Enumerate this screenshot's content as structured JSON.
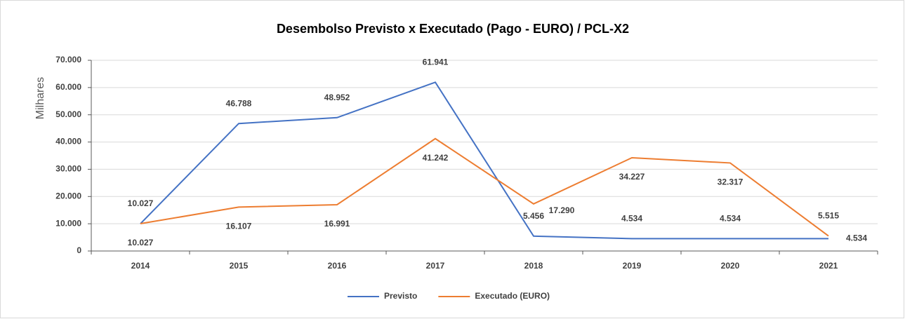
{
  "chart_data": {
    "type": "line",
    "title": "Desembolso Previsto x Executado (Pago - EURO) / PCL-X2",
    "y_axis_label": "Milhares",
    "categories": [
      "2014",
      "2015",
      "2016",
      "2017",
      "2018",
      "2019",
      "2020",
      "2021"
    ],
    "series": [
      {
        "name": "Previsto",
        "color": "#4472c4",
        "values": [
          10027,
          46788,
          48952,
          61941,
          5456,
          4534,
          4534,
          4534
        ],
        "value_labels": [
          "10.027",
          "46.788",
          "48.952",
          "61.941",
          "5.456",
          "4.534",
          "4.534",
          "4.534"
        ]
      },
      {
        "name": "Executado (EURO)",
        "color": "#ed7d31",
        "values": [
          10027,
          16107,
          16991,
          41242,
          17290,
          34227,
          32317,
          5515
        ],
        "value_labels": [
          "10.027",
          "16.107",
          "16.991",
          "41.242",
          "17.290",
          "34.227",
          "32.317",
          "5.515"
        ]
      }
    ],
    "ylim": [
      0,
      70000
    ],
    "yticks": [
      0,
      {
        "value": 10000,
        "label": "10.000"
      },
      {
        "value": 20000,
        "label": "20.000"
      },
      {
        "value": 30000,
        "label": "30.000"
      },
      {
        "value": 40000,
        "label": "40.000"
      },
      {
        "value": 50000,
        "label": "50.000"
      },
      {
        "value": 60000,
        "label": "60.000"
      },
      {
        "value": 70000,
        "label": "70.000"
      }
    ],
    "grid": true,
    "legend": "bottom"
  }
}
